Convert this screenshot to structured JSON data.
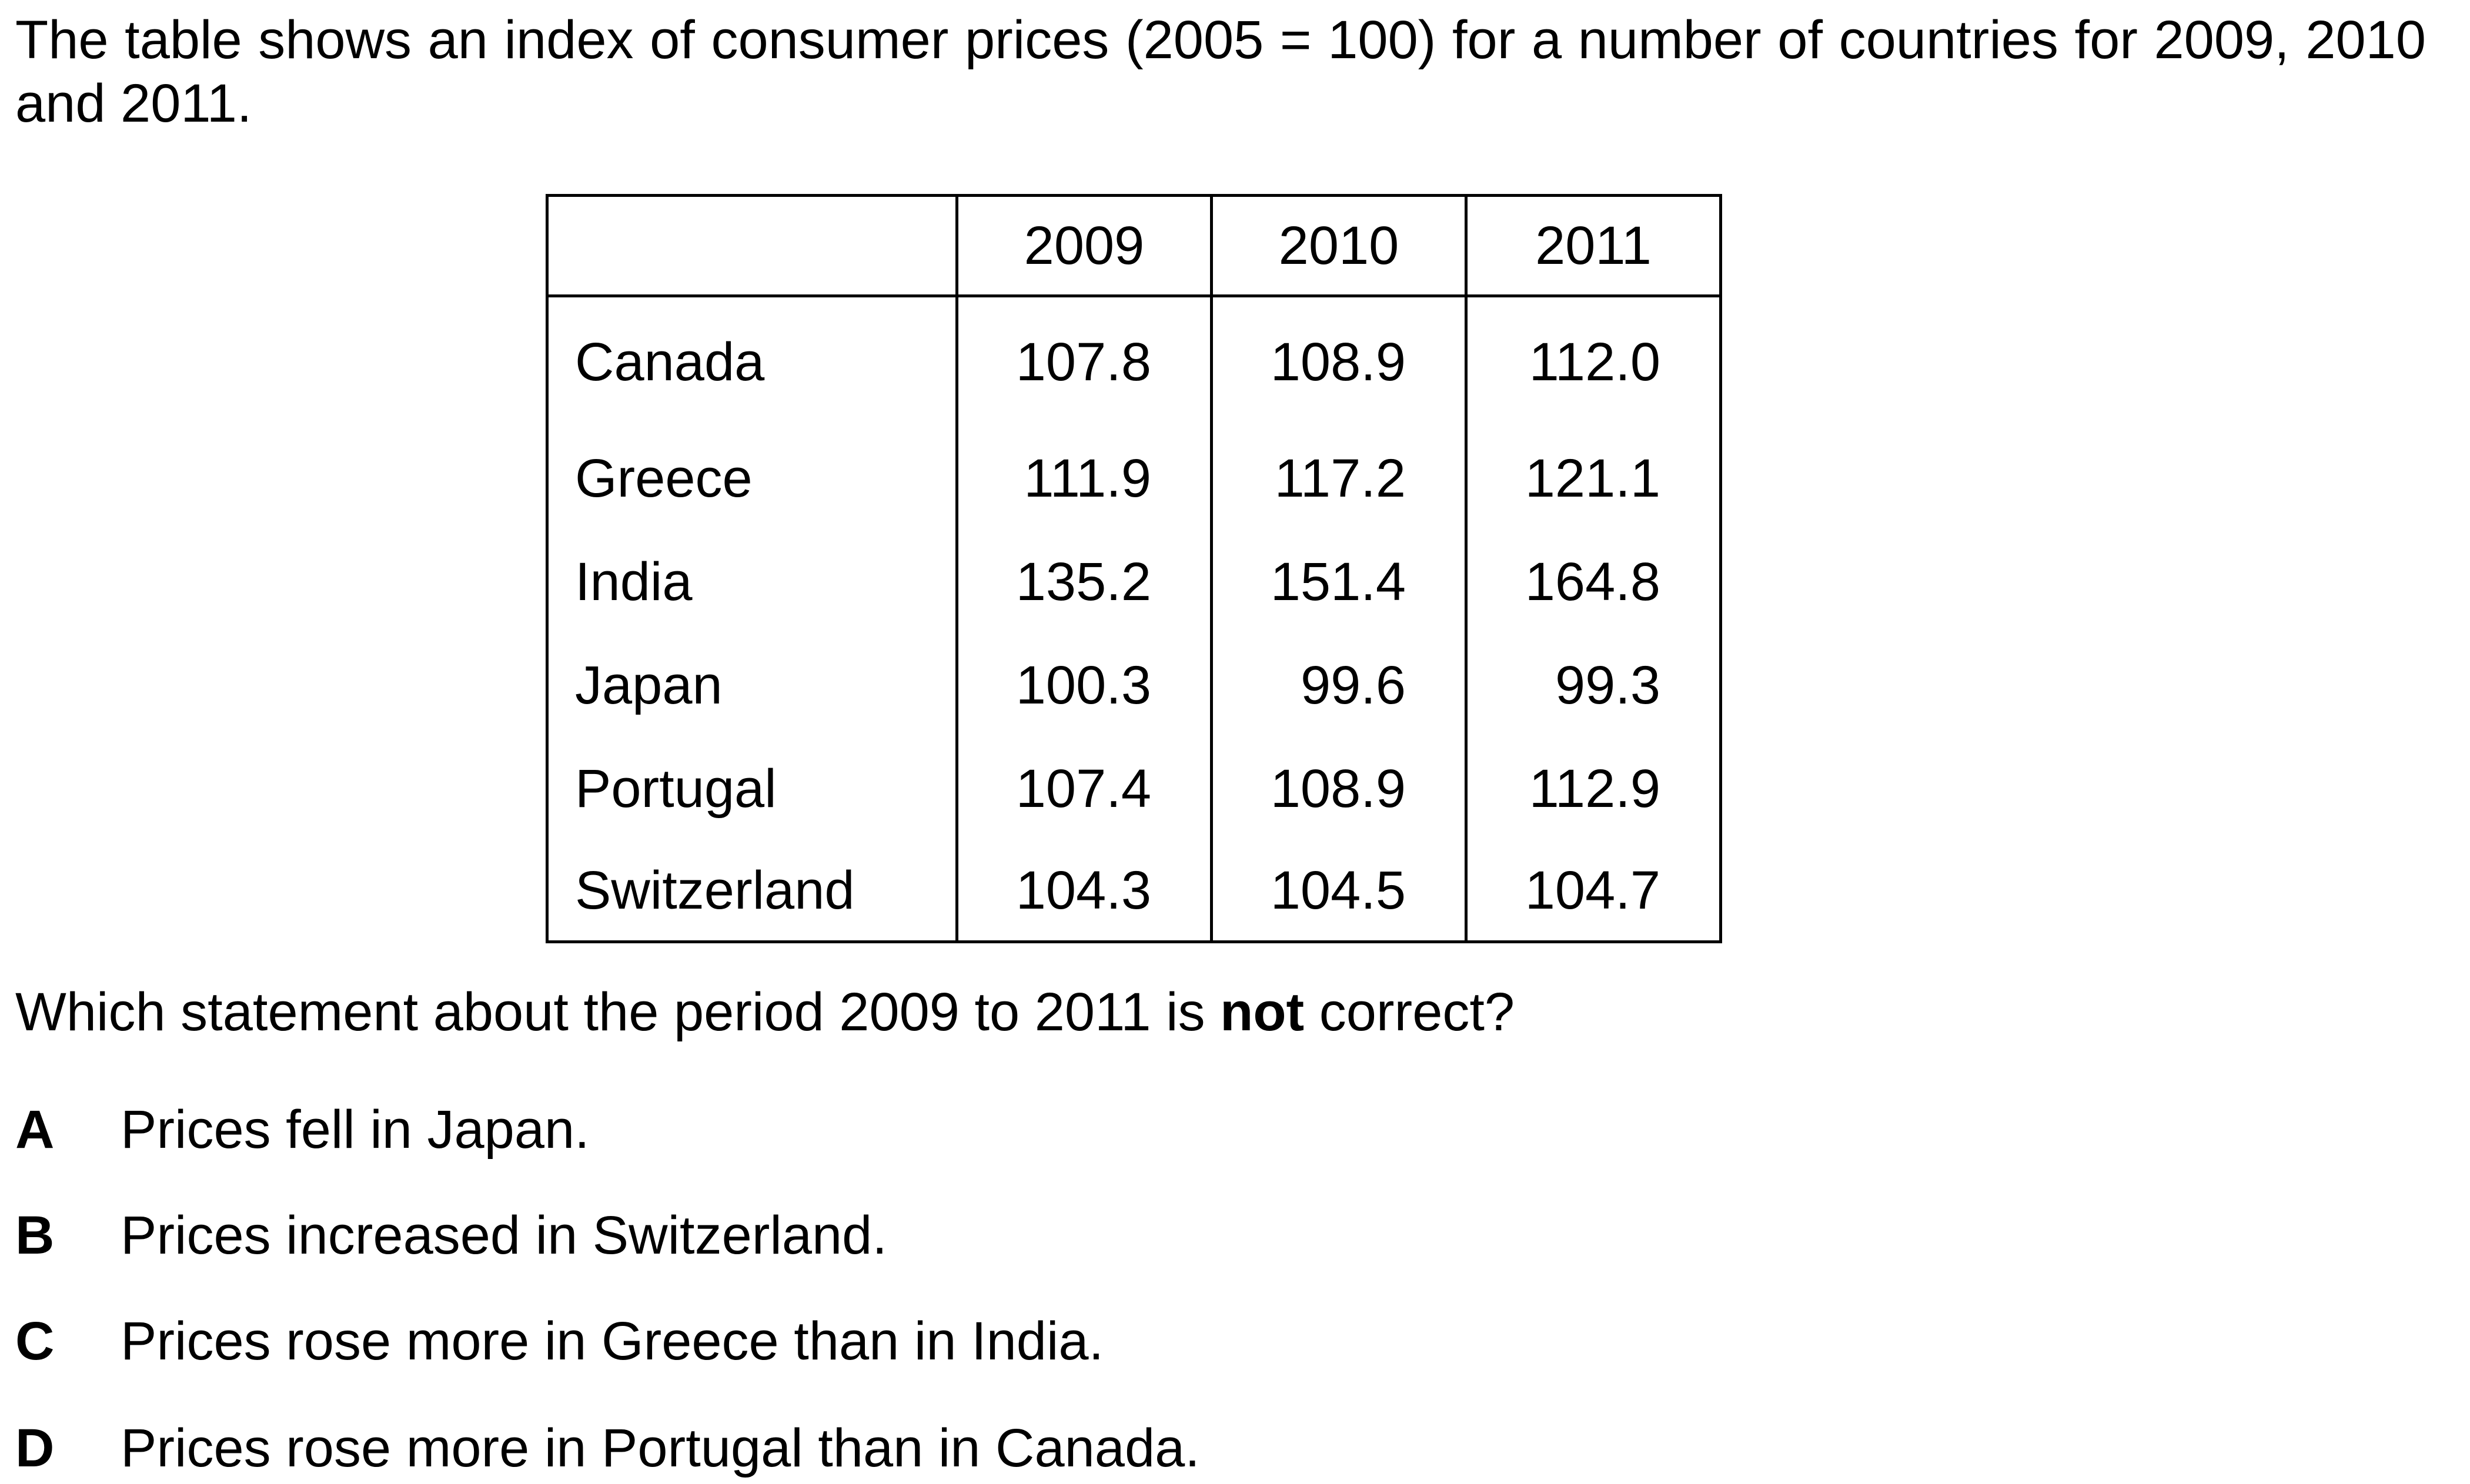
{
  "intro": "The table shows an index of consumer prices (2005 = 100) for a number of countries for 2009, 2010 and 2011.",
  "table": {
    "corner": "",
    "years": [
      "2009",
      "2010",
      "2011"
    ],
    "rows": [
      {
        "country": "Canada",
        "values": [
          "107.8",
          "108.9",
          "112.0"
        ]
      },
      {
        "country": "Greece",
        "values": [
          "111.9",
          "117.2",
          "121.1"
        ]
      },
      {
        "country": "India",
        "values": [
          "135.2",
          "151.4",
          "164.8"
        ]
      },
      {
        "country": "Japan",
        "values": [
          "100.3",
          "99.6",
          "99.3"
        ]
      },
      {
        "country": "Portugal",
        "values": [
          "107.4",
          "108.9",
          "112.9"
        ]
      },
      {
        "country": "Switzerland",
        "values": [
          "104.3",
          "104.5",
          "104.7"
        ]
      }
    ]
  },
  "question": {
    "before": "Which statement about the period 2009 to 2011 is ",
    "emphasis": "not",
    "after": " correct?"
  },
  "options": [
    {
      "letter": "A",
      "text": "Prices fell in Japan."
    },
    {
      "letter": "B",
      "text": "Prices increased in Switzerland."
    },
    {
      "letter": "C",
      "text": "Prices rose more in Greece than in India."
    },
    {
      "letter": "D",
      "text": "Prices rose more in Portugal than in Canada."
    }
  ]
}
